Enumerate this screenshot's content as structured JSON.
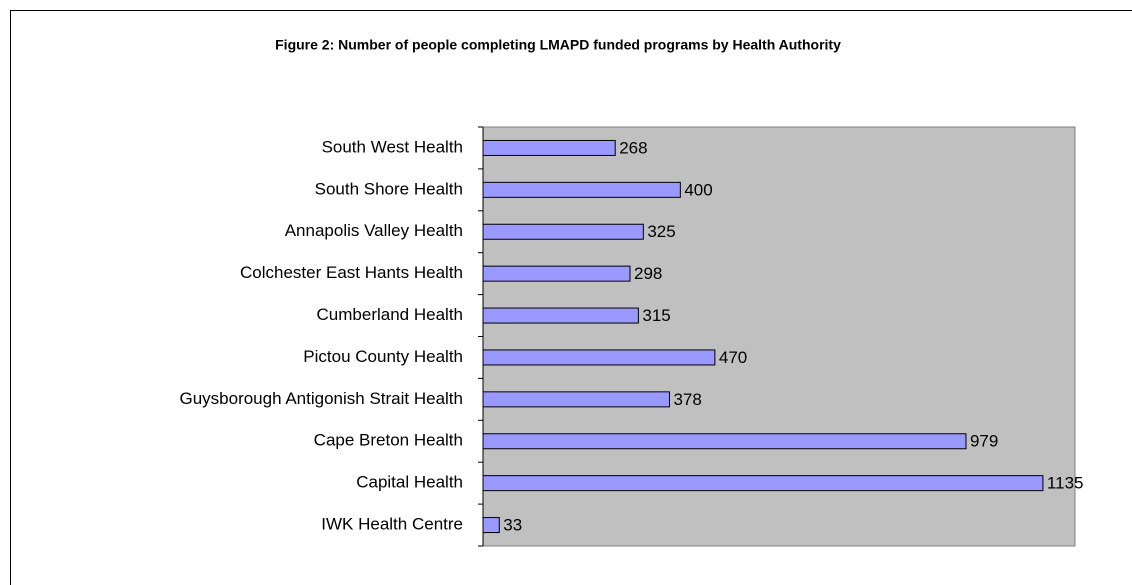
{
  "chart_data": {
    "type": "bar",
    "orientation": "horizontal",
    "title": "Figure 2: Number of people completing LMAPD funded programs by Health Authority",
    "categories": [
      "South West Health",
      "South Shore Health",
      "Annapolis Valley Health",
      "Colchester East Hants Health",
      "Cumberland Health",
      "Pictou County Health",
      "Guysborough Antigonish Strait Health",
      "Cape Breton Health",
      "Capital Health",
      "IWK Health Centre"
    ],
    "values": [
      268,
      400,
      325,
      298,
      315,
      470,
      378,
      979,
      1135,
      33
    ],
    "color": "#9999ff",
    "plot_background": "#c0c0c0",
    "xlim": [
      0,
      1200
    ]
  }
}
